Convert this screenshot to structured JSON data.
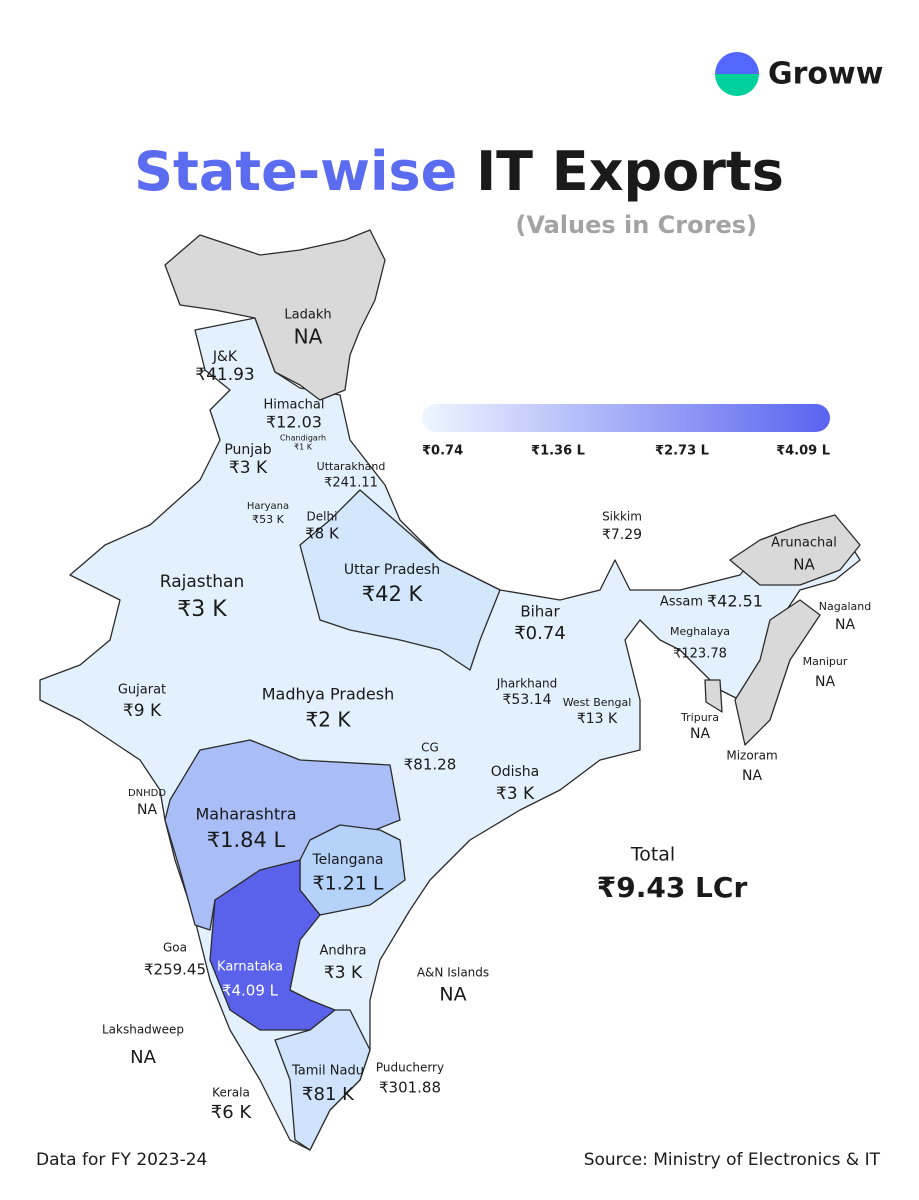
{
  "brand": {
    "name": "Groww"
  },
  "title": {
    "highlight": "State-wise",
    "rest": "IT Exports"
  },
  "subtitle": "(Values in Crores)",
  "legend": {
    "stops": [
      "₹0.74",
      "₹1.36 L",
      "₹2.73 L",
      "₹4.09 L"
    ],
    "colors": [
      "#eef6ff",
      "#5a63f0"
    ]
  },
  "map": {
    "base_color": "#e3f0fd",
    "border_color": "#2b2b2b"
  },
  "regions": [
    {
      "name": "Ladakh",
      "value": "NA",
      "color": "#d9d9d9"
    },
    {
      "name": "J&K",
      "value": "₹41.93"
    },
    {
      "name": "Himachal",
      "value": "₹12.03"
    },
    {
      "name": "Chandigarh",
      "value": "₹1 K"
    },
    {
      "name": "Punjab",
      "value": "₹3 K"
    },
    {
      "name": "Uttarakhand",
      "value": "₹241.11"
    },
    {
      "name": "Haryana",
      "value": "₹53 K"
    },
    {
      "name": "Delhi",
      "value": "₹8 K"
    },
    {
      "name": "Rajasthan",
      "value": "₹3 K"
    },
    {
      "name": "Uttar Pradesh",
      "value": "₹42 K",
      "color": "#d2e6fc"
    },
    {
      "name": "Bihar",
      "value": "₹0.74"
    },
    {
      "name": "Sikkim",
      "value": "₹7.29"
    },
    {
      "name": "Arunachal",
      "value": "NA",
      "color": "#d9d9d9"
    },
    {
      "name": "Assam",
      "value": "₹42.51"
    },
    {
      "name": "Nagaland",
      "value": "NA",
      "color": "#d9d9d9"
    },
    {
      "name": "Meghalaya",
      "value": "₹123.78"
    },
    {
      "name": "Manipur",
      "value": "NA"
    },
    {
      "name": "Gujarat",
      "value": "₹9 K"
    },
    {
      "name": "Madhya Pradesh",
      "value": "₹2 K"
    },
    {
      "name": "Jharkhand",
      "value": "₹53.14"
    },
    {
      "name": "West Bengal",
      "value": "₹13 K"
    },
    {
      "name": "Tripura",
      "value": "NA",
      "color": "#d9d9d9"
    },
    {
      "name": "Mizoram",
      "value": "NA"
    },
    {
      "name": "CG",
      "value": "₹81.28"
    },
    {
      "name": "Odisha",
      "value": "₹3 K"
    },
    {
      "name": "DNHDD",
      "value": "NA"
    },
    {
      "name": "Maharashtra",
      "value": "₹1.84 L",
      "color": "#a9bdf7"
    },
    {
      "name": "Telangana",
      "value": "₹1.21 L",
      "color": "#b5d2fb"
    },
    {
      "name": "Goa",
      "value": "₹259.45"
    },
    {
      "name": "Karnataka",
      "value": "₹4.09 L",
      "color": "#5a62ec"
    },
    {
      "name": "Andhra",
      "value": "₹3 K"
    },
    {
      "name": "A&N Islands",
      "value": "NA"
    },
    {
      "name": "Lakshadweep",
      "value": "NA"
    },
    {
      "name": "Tamil Nadu",
      "value": "₹81 K",
      "color": "#cfe4fc"
    },
    {
      "name": "Puducherry",
      "value": "₹301.88"
    },
    {
      "name": "Kerala",
      "value": "₹6 K"
    }
  ],
  "total": {
    "label": "Total",
    "value": "₹9.43 LCr"
  },
  "footer": {
    "note": "Data for FY 2023-24",
    "source": "Source: Ministry of Electronics & IT"
  }
}
